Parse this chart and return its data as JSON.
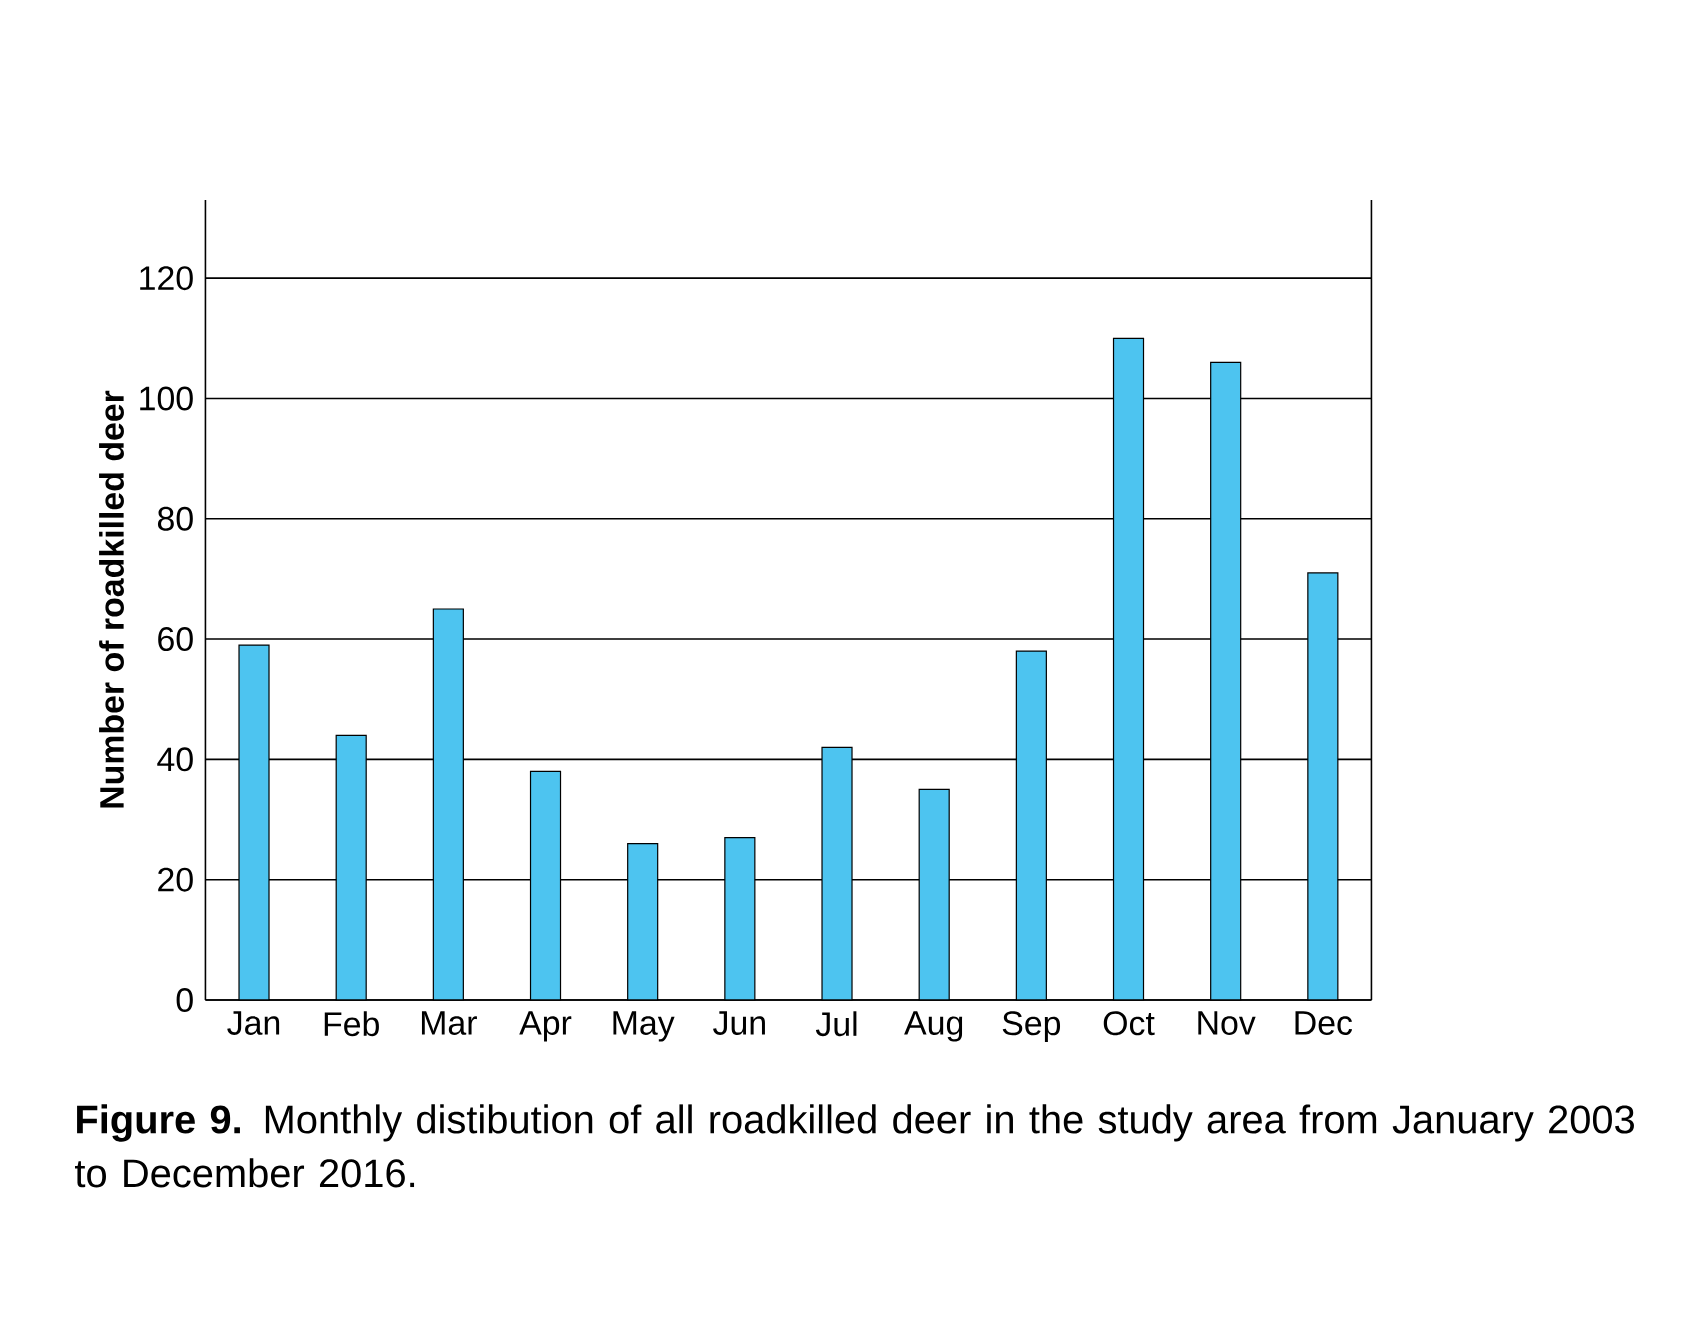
{
  "chart_data": {
    "type": "bar",
    "ylabel": "Number of roadkilled deer",
    "categories": [
      "Jan",
      "Feb",
      "Mar",
      "Apr",
      "May",
      "Jun",
      "Jul",
      "Aug",
      "Sep",
      "Oct",
      "Nov",
      "Dec"
    ],
    "values": [
      59,
      44,
      65,
      38,
      26,
      27,
      42,
      35,
      58,
      110,
      106,
      71
    ],
    "color": "#4dc4f0",
    "ylim": [
      0,
      133
    ],
    "yticks": [
      0,
      20,
      40,
      60,
      80,
      100,
      120
    ],
    "grid": "y",
    "annotations": [
      "**Figure 9.** Monthly distibution of all roadkilled deer in the study area from January 2003 to December 2016."
    ]
  }
}
